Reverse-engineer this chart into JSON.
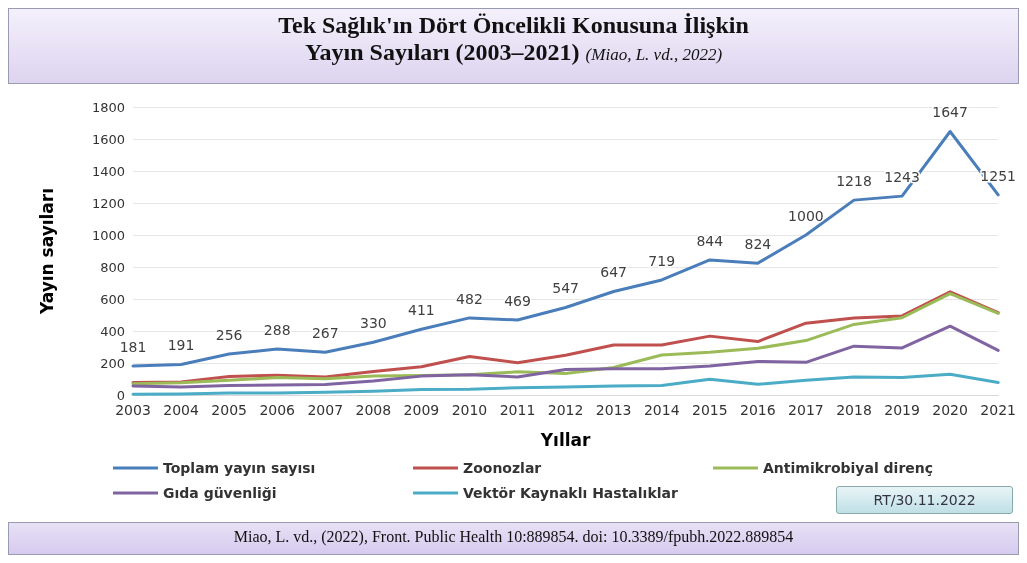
{
  "chart_data": {
    "type": "line",
    "title": "Tek Sağlık'ın Dört Öncelikli Konusuna İlişkin\nYayın Sayıları (2003–2021)",
    "subtitle": "(Miao, L. vd., 2022)",
    "xlabel": "Yıllar",
    "ylabel": "Yayın sayıları",
    "categories": [
      "2003",
      "2004",
      "2005",
      "2006",
      "2007",
      "2008",
      "2009",
      "2010",
      "2011",
      "2012",
      "2013",
      "2014",
      "2015",
      "2016",
      "2017",
      "2018",
      "2019",
      "2020",
      "2021"
    ],
    "ylim": [
      0,
      1800
    ],
    "yticks": [
      0,
      200,
      400,
      600,
      800,
      1000,
      1200,
      1400,
      1600,
      1800
    ],
    "grid": "y",
    "legend": "bottom",
    "marker": "none",
    "line_style": "solid",
    "series": [
      {
        "name": "Toplam yayın sayısı",
        "color": "#4a7ebb",
        "values": [
          181,
          191,
          256,
          288,
          267,
          330,
          411,
          482,
          469,
          547,
          647,
          719,
          844,
          824,
          1000,
          1218,
          1243,
          1647,
          1251
        ],
        "value_labels": [
          "181",
          "191",
          "256",
          "288",
          "267",
          "330",
          "411",
          "482",
          "469",
          "547",
          "647",
          "719",
          "844",
          "824",
          "1000",
          "1218",
          "1243",
          "1647",
          "1251"
        ]
      },
      {
        "name": "Zoonozlar",
        "color": "#c0504d",
        "values": [
          78,
          82,
          115,
          124,
          113,
          147,
          176,
          241,
          202,
          248,
          313,
          313,
          368,
          334,
          449,
          481,
          494,
          645,
          515
        ]
      },
      {
        "name": "Antimikrobiyal direnç",
        "color": "#9bbb59",
        "values": [
          71,
          76,
          92,
          109,
          101,
          118,
          122,
          126,
          145,
          134,
          172,
          250,
          267,
          292,
          340,
          441,
          483,
          634,
          510
        ]
      },
      {
        "name": "Gıda güvenliği",
        "color": "#8064a2",
        "values": [
          57,
          50,
          59,
          63,
          65,
          88,
          118,
          126,
          113,
          160,
          164,
          164,
          181,
          210,
          204,
          305,
          294,
          430,
          279
        ]
      },
      {
        "name": "Vektör Kaynaklı Hastalıklar",
        "color": "#4bacc6",
        "values": [
          4,
          6,
          13,
          13,
          17,
          23,
          34,
          36,
          46,
          50,
          57,
          59,
          99,
          67,
          92,
          113,
          109,
          130,
          78
        ]
      }
    ],
    "annotations": [
      "RT/30.11.2022",
      "Miao, L. vd., (2022), Front. Public Health 10:889854. doi: 10.3389/fpubh.2022.889854"
    ]
  }
}
